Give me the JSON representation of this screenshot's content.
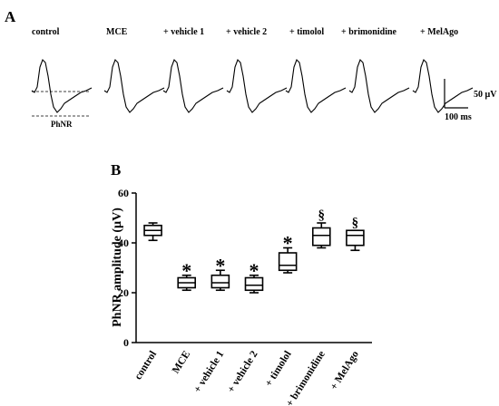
{
  "panel_a": {
    "label": "A",
    "conditions": [
      "control",
      "MCE",
      "+ vehicle 1",
      "+ vehicle 2",
      "+ timolol",
      "+ brimonidine",
      "+ MelAgo"
    ],
    "phnr_label": "PhNR",
    "scale_bar_amplitude": "50 µV",
    "scale_bar_time": "100 ms"
  },
  "panel_b": {
    "label": "B"
  },
  "chart_data": {
    "type": "box",
    "title": "",
    "ylabel": "PhNR amplitude (µV)",
    "xlabel": "",
    "ylim": [
      0,
      60
    ],
    "yticks": [
      "0",
      "20",
      "40",
      "60"
    ],
    "grid": false,
    "categories": [
      "control",
      "MCE",
      "+ vehicle 1",
      "+ vehicle 2",
      "+ timolol",
      "+ brimonidine",
      "+ MelAgo"
    ],
    "boxes": [
      {
        "min": 41,
        "q1": 43,
        "median": 45,
        "q3": 47,
        "max": 48,
        "annotation": ""
      },
      {
        "min": 21,
        "q1": 22,
        "median": 24,
        "q3": 26,
        "max": 27,
        "annotation": "*"
      },
      {
        "min": 21,
        "q1": 22,
        "median": 24,
        "q3": 27,
        "max": 29,
        "annotation": "*"
      },
      {
        "min": 20,
        "q1": 21,
        "median": 23,
        "q3": 26,
        "max": 27,
        "annotation": "*"
      },
      {
        "min": 28,
        "q1": 29,
        "median": 31,
        "q3": 36,
        "max": 38,
        "annotation": "*"
      },
      {
        "min": 38,
        "q1": 39,
        "median": 43,
        "q3": 46,
        "max": 48,
        "annotation": "§"
      },
      {
        "min": 37,
        "q1": 39,
        "median": 43,
        "q3": 45,
        "max": 45,
        "annotation": "§"
      }
    ]
  }
}
